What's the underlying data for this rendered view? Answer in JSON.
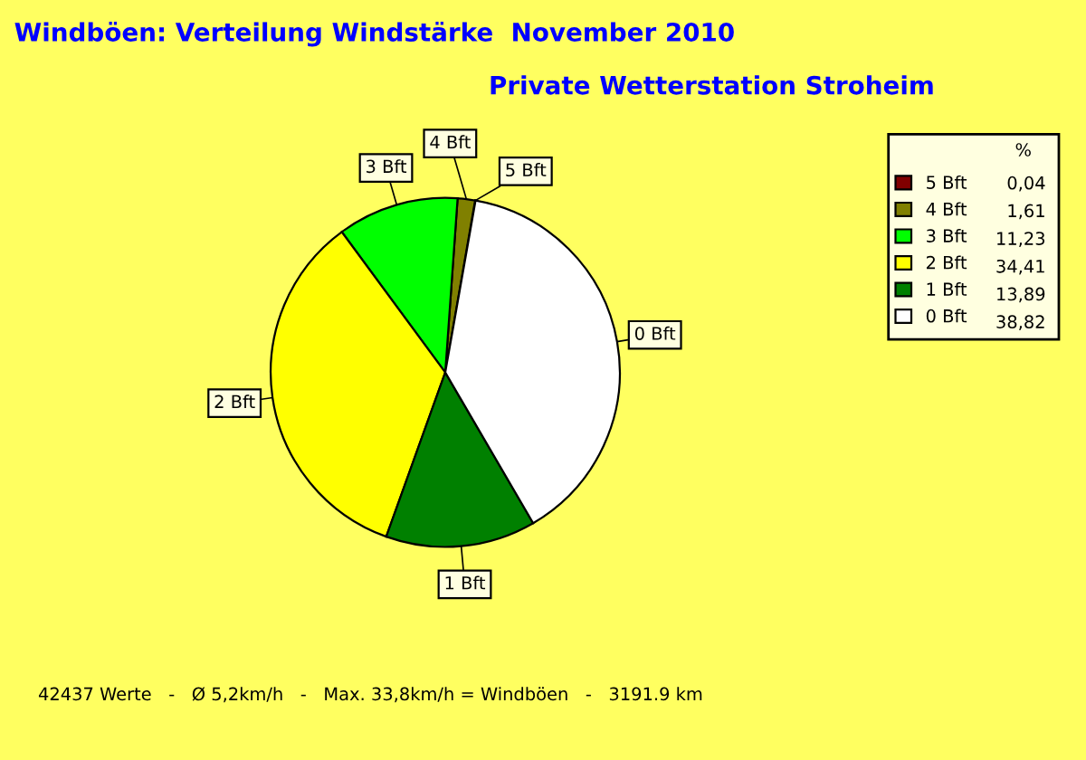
{
  "chart_data": {
    "type": "pie",
    "title": "Windböen: Verteilung Windstärke  November 2010",
    "subtitle": "Private Wetterstation Stroheim",
    "categories": [
      "5 Bft",
      "4 Bft",
      "3 Bft",
      "2 Bft",
      "1 Bft",
      "0 Bft"
    ],
    "values": [
      0.04,
      1.61,
      11.23,
      34.41,
      13.89,
      38.82
    ],
    "value_labels": [
      "0,04",
      "1,61",
      "11,23",
      "34,41",
      "13,89",
      "38,82"
    ],
    "colors": [
      "#800000",
      "#808000",
      "#00ff00",
      "#ffff00",
      "#008000",
      "#ffffff"
    ],
    "legend": "top right",
    "legend_title": "%",
    "annotations": [
      "42437 Werte   -   Ø 5,2km/h   -   Max. 33,8km/h = Windböen   -   3191.9 km"
    ]
  }
}
